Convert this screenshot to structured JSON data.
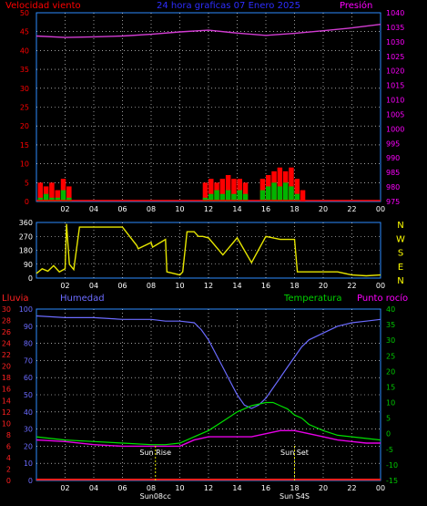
{
  "colors": {
    "background": "#000000",
    "axis_left": "#ff0000",
    "axis_right": "#ff00ff",
    "axis_humidity": "#6b6bff",
    "axis_temperature": "#00c800",
    "x_axis": "#2d8cff",
    "grid": "#ffffff",
    "wind_speed": "#ff0000",
    "wind_gust": "#00b400",
    "pressure": "#d23cd2",
    "direction": "#e6e600",
    "humidity": "#6b6bff",
    "temperature": "#00e100",
    "dewpoint": "#e600e6",
    "rain": "#ff2020",
    "sun_marker": "#e6e600",
    "compass": "#ffff00"
  },
  "chart_data": [
    {
      "type": "bar",
      "id": "wind-pressure",
      "title": "24 hora graficas  07 Enero 2025",
      "left_label": "Velocidad viento",
      "right_label": "Presión",
      "x_ticks": [
        "02",
        "04",
        "06",
        "08",
        "10",
        "12",
        "14",
        "16",
        "18",
        "20",
        "22",
        "00"
      ],
      "x_range": [
        0,
        24
      ],
      "y_left_ticks": [
        "0",
        "5",
        "10",
        "15",
        "20",
        "25",
        "30",
        "35",
        "40",
        "45",
        "50"
      ],
      "y_left_range": [
        0,
        50
      ],
      "y_right_ticks": [
        "975",
        "980",
        "985",
        "990",
        "995",
        "1000",
        "1005",
        "1010",
        "1015",
        "1020",
        "1025",
        "1030",
        "1035",
        "1040"
      ],
      "y_right_range": [
        975,
        1040
      ],
      "grid": true,
      "series": [
        {
          "kind": "bars",
          "x": [
            0.1,
            0.5,
            0.9,
            1.3,
            1.7,
            2.1,
            11.6,
            12.0,
            12.4,
            12.8,
            13.2,
            13.6,
            14.0,
            14.4,
            15.6,
            16.0,
            16.4,
            16.8,
            17.2,
            17.6,
            18.0,
            18.4
          ],
          "values": [
            5,
            4,
            5,
            3,
            6,
            4,
            5,
            6,
            5,
            6,
            7,
            6,
            6,
            5,
            6,
            7,
            8,
            9,
            8,
            9,
            6,
            3
          ]
        },
        {
          "kind": "bars",
          "x": [
            0.1,
            0.5,
            0.9,
            1.3,
            1.7,
            2.1,
            11.6,
            12.0,
            12.4,
            12.8,
            13.2,
            13.6,
            14.0,
            14.4,
            15.6,
            16.0,
            16.4,
            16.8,
            17.2,
            17.6,
            18.0,
            18.4
          ],
          "values": [
            1,
            2,
            1,
            1,
            3,
            1,
            1,
            2,
            3,
            2,
            3,
            2,
            3,
            2,
            3,
            4,
            5,
            4,
            5,
            4,
            2,
            0
          ]
        },
        {
          "kind": "line",
          "x": [
            0,
            2,
            4,
            6,
            8,
            10,
            12,
            14,
            16,
            18,
            20,
            22,
            24
          ],
          "values": [
            1032,
            1031.5,
            1031.7,
            1032,
            1032.6,
            1033.4,
            1034,
            1033,
            1032.2,
            1032.9,
            1033.8,
            1034.8,
            1036
          ]
        }
      ]
    },
    {
      "type": "line",
      "id": "wind-direction",
      "x_ticks": [
        "02",
        "04",
        "06",
        "08",
        "10",
        "12",
        "14",
        "16",
        "18",
        "20",
        "22",
        "00"
      ],
      "x_range": [
        0,
        24
      ],
      "y_ticks": [
        "0",
        "90",
        "180",
        "270",
        "360"
      ],
      "y_range": [
        0,
        360
      ],
      "compass": [
        "N",
        "W",
        "S",
        "E",
        "N"
      ],
      "grid": true,
      "series": [
        {
          "name": "",
          "x": [
            0,
            0.4,
            0.8,
            1.2,
            1.6,
            2.0,
            2.1,
            2.3,
            2.6,
            3.0,
            4.0,
            6.0,
            7.0,
            7.1,
            8.0,
            8.1,
            9.0,
            9.1,
            9.8,
            10.0,
            10.2,
            10.5,
            11.0,
            11.3,
            11.6,
            12.0,
            13.0,
            14.0,
            15.0,
            16.0,
            17.0,
            18.0,
            18.2,
            19.0,
            20.0,
            21.0,
            22.0,
            23.0,
            24.0
          ],
          "values": [
            30,
            60,
            45,
            80,
            40,
            60,
            350,
            90,
            55,
            330,
            330,
            330,
            210,
            190,
            230,
            200,
            250,
            40,
            25,
            20,
            40,
            300,
            300,
            270,
            270,
            260,
            150,
            260,
            100,
            270,
            250,
            250,
            40,
            40,
            40,
            40,
            20,
            15,
            20
          ]
        }
      ]
    },
    {
      "type": "line",
      "id": "humidity-temperature",
      "labels": {
        "rain": "Lluvia",
        "humidity": "Humedad",
        "temperature": "Temperatura",
        "dewpoint": "Punto rocío"
      },
      "x_ticks": [
        "02",
        "04",
        "06",
        "08",
        "10",
        "12",
        "14",
        "16",
        "18",
        "20",
        "22",
        "00"
      ],
      "x_range": [
        0,
        24
      ],
      "y_rain_ticks": [
        "0",
        "2",
        "4",
        "6",
        "8",
        "10",
        "12",
        "14",
        "16",
        "18",
        "20",
        "22",
        "24",
        "26",
        "28",
        "30"
      ],
      "y_rain_range": [
        0,
        30
      ],
      "y_humidity_ticks": [
        "0",
        "10",
        "20",
        "30",
        "40",
        "50",
        "60",
        "70",
        "80",
        "90",
        "100"
      ],
      "y_humidity_range": [
        0,
        100
      ],
      "y_temperature_ticks": [
        "-15",
        "-10",
        "-5",
        "0",
        "5",
        "10",
        "15",
        "20",
        "25",
        "30",
        "35",
        "40"
      ],
      "y_temperature_range": [
        -15,
        40
      ],
      "annotations": [
        {
          "text": "Sun Rise",
          "x": 8.3
        },
        {
          "text": "Sun Set",
          "x": 18.0
        },
        {
          "text": "Sun08cc",
          "x": 8.3
        },
        {
          "text": "Sun S4S",
          "x": 18.0
        }
      ],
      "grid": true,
      "series": [
        {
          "name": "Humedad",
          "x": [
            0,
            2,
            4,
            6,
            8,
            9,
            10,
            11,
            11.5,
            12,
            12.5,
            13,
            13.5,
            14,
            14.5,
            15,
            15.5,
            16,
            16.5,
            17,
            17.5,
            18,
            18.5,
            19,
            20,
            21,
            22,
            23,
            24
          ],
          "values": [
            96,
            95,
            95,
            94,
            94,
            93,
            93,
            92,
            88,
            82,
            74,
            66,
            58,
            50,
            44,
            42,
            44,
            48,
            54,
            60,
            66,
            72,
            78,
            82,
            86,
            90,
            92,
            93,
            94
          ]
        },
        {
          "name": "Temperatura",
          "x": [
            0,
            2,
            4,
            6,
            8,
            9,
            10,
            11,
            12,
            13,
            14,
            15,
            16,
            16.5,
            17,
            17.5,
            18,
            18.5,
            19,
            20,
            21,
            22,
            23,
            24
          ],
          "values": [
            -1,
            -2,
            -2.5,
            -3,
            -3.5,
            -3.5,
            -3,
            -1,
            1,
            4,
            7,
            9,
            10,
            10,
            9,
            8,
            6,
            5,
            3,
            1,
            -0.5,
            -1,
            -1.5,
            -2
          ]
        },
        {
          "name": "Punto rocío",
          "x": [
            0,
            2,
            4,
            6,
            8,
            9,
            10,
            11,
            12,
            13,
            14,
            15,
            16,
            17,
            18,
            19,
            20,
            21,
            22,
            23,
            24
          ],
          "values": [
            -2,
            -2.5,
            -3.5,
            -4,
            -4,
            -4,
            -4,
            -2,
            -1,
            -1,
            -1,
            -1,
            0,
            1,
            1,
            0,
            -1,
            -2,
            -2.5,
            -3,
            -3
          ]
        },
        {
          "name": "Lluvia",
          "x": [
            0,
            24
          ],
          "values": [
            0,
            0
          ]
        }
      ]
    }
  ]
}
